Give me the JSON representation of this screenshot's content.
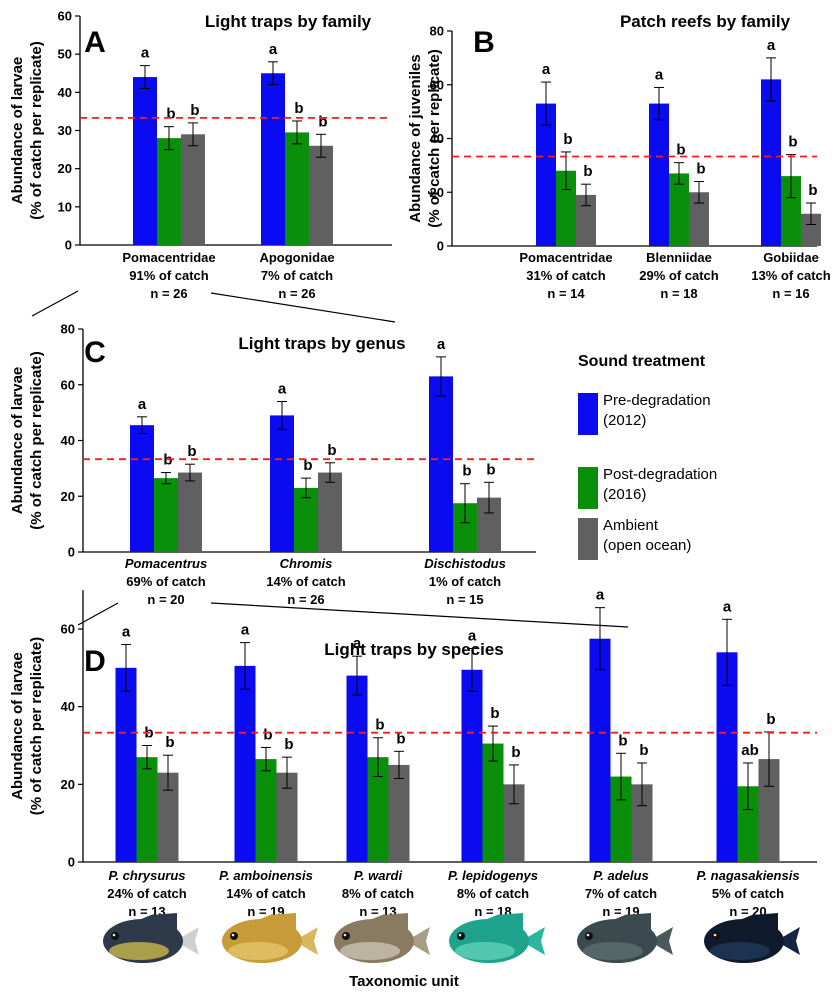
{
  "colors": {
    "pre": "#0b0bf2",
    "post": "#0a8f0a",
    "ambient": "#606060",
    "reference_line": "#ff1a1a"
  },
  "reference_line_value": 33.3,
  "legend": {
    "title": "Sound treatment",
    "entries": [
      {
        "key": "pre",
        "line1": "Pre-degradation",
        "line2": "(2012)"
      },
      {
        "key": "post",
        "line1": "Post-degradation",
        "line2": "(2016)"
      },
      {
        "key": "ambient",
        "line1": "Ambient",
        "line2": "(open ocean)"
      }
    ]
  },
  "xlabel": "Taxonomic unit",
  "fish_icon_names": [
    "fish-photo-chrysurus-icon",
    "fish-photo-amboinensis-icon",
    "fish-photo-wardi-icon",
    "fish-photo-lepidogenys-icon",
    "fish-photo-adelus-icon",
    "fish-photo-nagasakiensis-icon"
  ],
  "chart_data": [
    {
      "panel": "A",
      "type": "bar",
      "title": "Light traps by family",
      "ylabel_line1": "Abundance of larvae",
      "ylabel_line2": "(% of catch per replicate)",
      "ylim": [
        0,
        60
      ],
      "yticks": [
        0,
        10,
        20,
        30,
        40,
        50,
        60
      ],
      "series_order": [
        "pre",
        "post",
        "ambient"
      ],
      "categories": [
        {
          "name": "Pomacentridae",
          "italic": false,
          "catch": "91% of catch",
          "n": "n = 26",
          "values": [
            44,
            28,
            29
          ],
          "errors": [
            3,
            3,
            3
          ],
          "letters": [
            "a",
            "b",
            "b"
          ]
        },
        {
          "name": "Apogonidae",
          "italic": false,
          "catch": "7% of catch",
          "n": "n = 26",
          "values": [
            45,
            29.5,
            26
          ],
          "errors": [
            3,
            3,
            3
          ],
          "letters": [
            "a",
            "b",
            "b"
          ]
        }
      ]
    },
    {
      "panel": "B",
      "type": "bar",
      "title": "Patch reefs by family",
      "ylabel_line1": "Abundance of juveniles",
      "ylabel_line2": "(% of catch per replicate)",
      "ylim": [
        0,
        80
      ],
      "yticks": [
        0,
        20,
        40,
        60,
        80
      ],
      "series_order": [
        "pre",
        "post",
        "ambient"
      ],
      "categories": [
        {
          "name": "Pomacentridae",
          "italic": false,
          "catch": "31% of catch",
          "n": "n = 14",
          "values": [
            53,
            28,
            19
          ],
          "errors": [
            8,
            7,
            4
          ],
          "letters": [
            "a",
            "b",
            "b"
          ]
        },
        {
          "name": "Blenniidae",
          "italic": false,
          "catch": "29% of catch",
          "n": "n = 18",
          "values": [
            53,
            27,
            20
          ],
          "errors": [
            6,
            4,
            4
          ],
          "letters": [
            "a",
            "b",
            "b"
          ]
        },
        {
          "name": "Gobiidae",
          "italic": false,
          "catch": "13% of catch",
          "n": "n = 16",
          "values": [
            62,
            26,
            12
          ],
          "errors": [
            8,
            8,
            4
          ],
          "letters": [
            "a",
            "b",
            "b"
          ]
        }
      ]
    },
    {
      "panel": "C",
      "type": "bar",
      "title": "Light traps by genus",
      "ylabel_line1": "Abundance of larvae",
      "ylabel_line2": "(% of catch per replicate)",
      "ylim": [
        0,
        80
      ],
      "yticks": [
        0,
        20,
        40,
        60,
        80
      ],
      "series_order": [
        "pre",
        "post",
        "ambient"
      ],
      "categories": [
        {
          "name": "Pomacentrus",
          "italic": true,
          "catch": "69% of catch",
          "n": "n = 20",
          "values": [
            45.5,
            26.5,
            28.5
          ],
          "errors": [
            3,
            2,
            3
          ],
          "letters": [
            "a",
            "b",
            "b"
          ]
        },
        {
          "name": "Chromis",
          "italic": true,
          "catch": "14% of catch",
          "n": "n = 26",
          "values": [
            49,
            23,
            28.5
          ],
          "errors": [
            5,
            3.5,
            3.5
          ],
          "letters": [
            "a",
            "b",
            "b"
          ]
        },
        {
          "name": "Dischistodus",
          "italic": true,
          "catch": "1% of catch",
          "n": "n = 15",
          "values": [
            63,
            17.5,
            19.5
          ],
          "errors": [
            7,
            7,
            5.5
          ],
          "letters": [
            "a",
            "b",
            "b"
          ]
        }
      ]
    },
    {
      "panel": "D",
      "type": "bar",
      "title": "Light traps by species",
      "ylabel_line1": "Abundance of larvae",
      "ylabel_line2": "(% of catch per replicate)",
      "ylim": [
        0,
        70
      ],
      "yticks": [
        0,
        20,
        40,
        60
      ],
      "series_order": [
        "pre",
        "post",
        "ambient"
      ],
      "categories": [
        {
          "name": "P. chrysurus",
          "italic": true,
          "catch": "24% of catch",
          "n": "n = 13",
          "values": [
            50,
            27,
            23
          ],
          "errors": [
            6,
            3,
            4.5
          ],
          "letters": [
            "a",
            "b",
            "b"
          ]
        },
        {
          "name": "P. amboinensis",
          "italic": true,
          "catch": "14% of catch",
          "n": "n = 19",
          "values": [
            50.5,
            26.5,
            23
          ],
          "errors": [
            6,
            3,
            4
          ],
          "letters": [
            "a",
            "b",
            "b"
          ]
        },
        {
          "name": "P. wardi",
          "italic": true,
          "catch": "8% of catch",
          "n": "n = 13",
          "values": [
            48,
            27,
            25
          ],
          "errors": [
            5,
            5,
            3.5
          ],
          "letters": [
            "a",
            "b",
            "b"
          ]
        },
        {
          "name": "P. lepidogenys",
          "italic": true,
          "catch": "8% of catch",
          "n": "n = 18",
          "values": [
            49.5,
            30.5,
            20
          ],
          "errors": [
            5.5,
            4.5,
            5
          ],
          "letters": [
            "a",
            "b",
            "b"
          ]
        },
        {
          "name": "P. adelus",
          "italic": true,
          "catch": "7% of catch",
          "n": "n = 19",
          "values": [
            57.5,
            22,
            20
          ],
          "errors": [
            8,
            6,
            5.5
          ],
          "letters": [
            "a",
            "b",
            "b"
          ]
        },
        {
          "name": "P. nagasakiensis",
          "italic": true,
          "catch": "5% of catch",
          "n": "n = 20",
          "values": [
            54,
            19.5,
            26.5
          ],
          "errors": [
            8.5,
            6,
            7
          ],
          "letters": [
            "a",
            "ab",
            "b"
          ]
        }
      ]
    }
  ]
}
